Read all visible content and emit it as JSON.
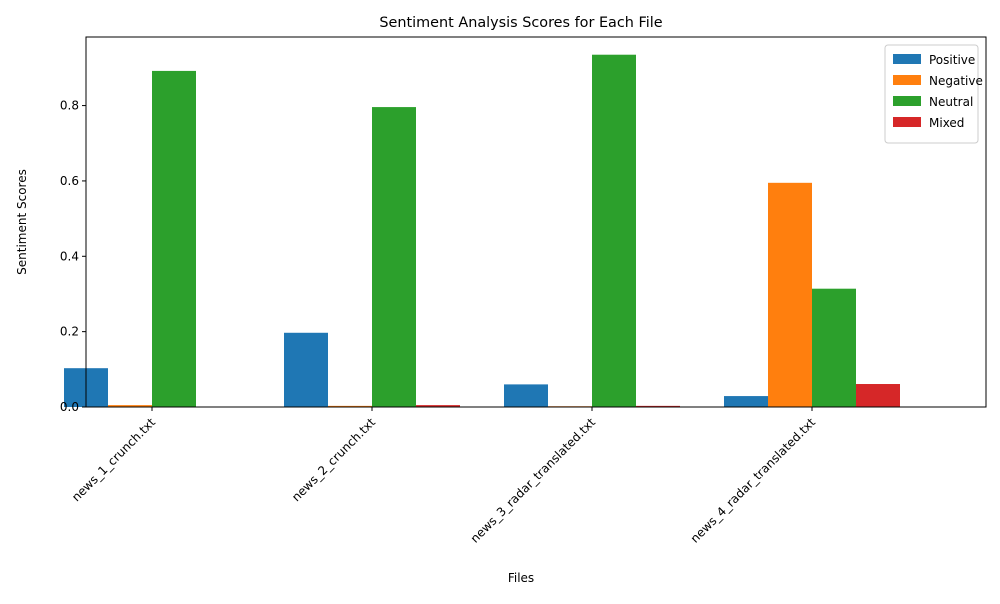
{
  "chart_data": {
    "type": "bar",
    "title": "Sentiment Analysis Scores for Each File",
    "xlabel": "Files",
    "ylabel": "Sentiment Scores",
    "categories": [
      "news_1_crunch.txt",
      "news_2_crunch.txt",
      "news_3_radar_translated.txt",
      "news_4_radar_translated.txt"
    ],
    "series": [
      {
        "name": "Positive",
        "color": "#1f77b4",
        "values": [
          0.103,
          0.197,
          0.06,
          0.029
        ]
      },
      {
        "name": "Negative",
        "color": "#ff7f0e",
        "values": [
          0.005,
          0.003,
          0.002,
          0.595
        ]
      },
      {
        "name": "Neutral",
        "color": "#2ca02c",
        "values": [
          0.892,
          0.796,
          0.935,
          0.314
        ]
      },
      {
        "name": "Mixed",
        "color": "#d62728",
        "values": [
          0.001,
          0.005,
          0.003,
          0.061
        ]
      }
    ],
    "yticks": [
      "0.0",
      "0.2",
      "0.4",
      "0.6",
      "0.8"
    ],
    "ylim": [
      0,
      0.982
    ],
    "grid": false,
    "legend_position": "top-right"
  }
}
